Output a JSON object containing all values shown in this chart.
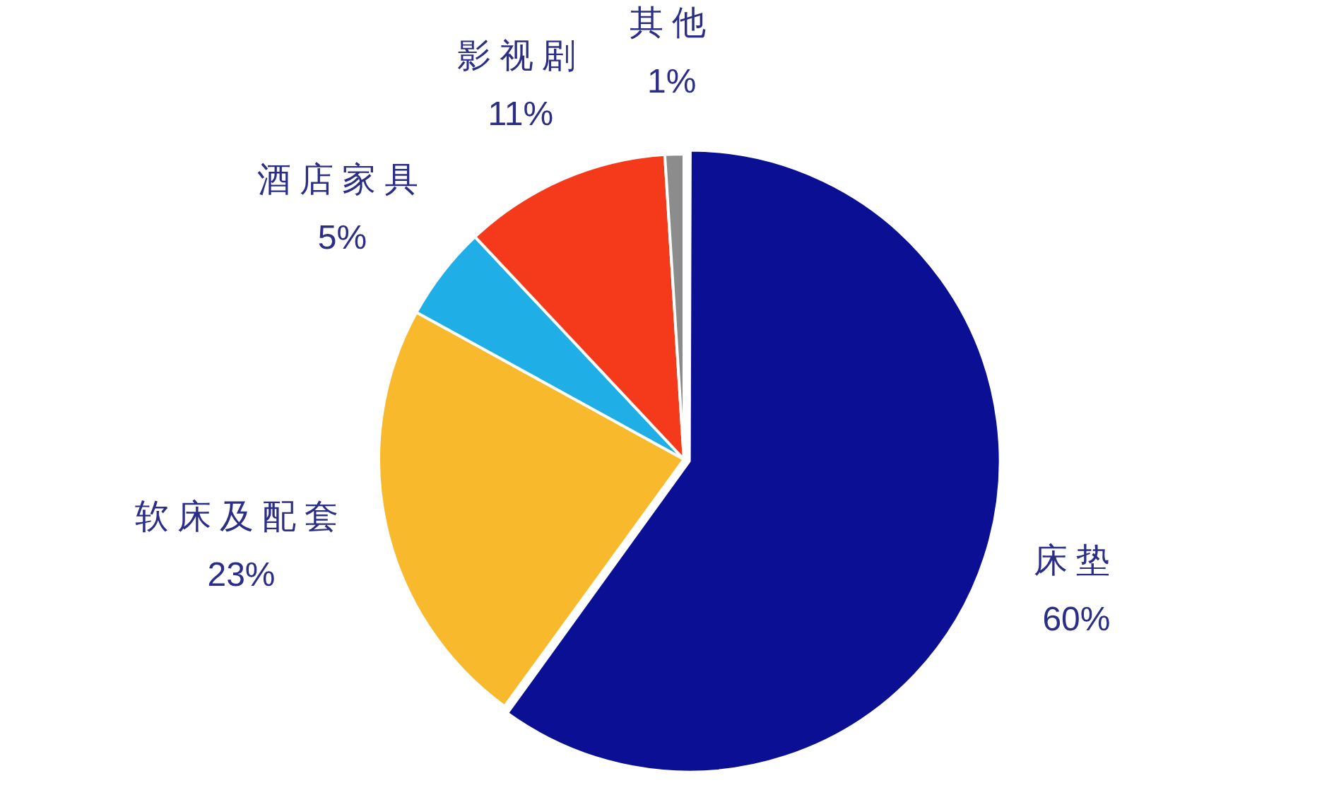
{
  "chart_data": {
    "type": "pie",
    "categories": [
      "床垫",
      "软床及配套",
      "酒店家具",
      "影视剧",
      "其他"
    ],
    "values": [
      60,
      23,
      5,
      11,
      1
    ],
    "value_labels": [
      "60%",
      "23%",
      "5%",
      "11%",
      "1%"
    ],
    "colors": [
      "#0a0f94",
      "#f8b92c",
      "#20aee6",
      "#f53a1c",
      "#8c8c8c"
    ],
    "legend": false
  }
}
